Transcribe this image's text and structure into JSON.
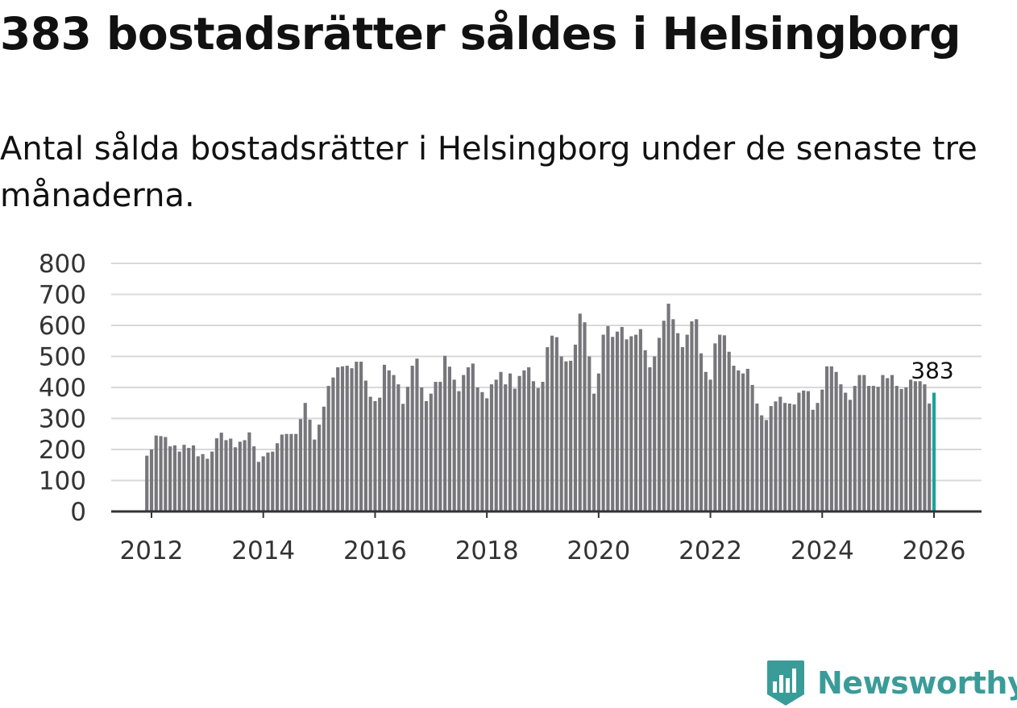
{
  "header": {
    "title": "383 bostadsrätter såldes i Helsingborg",
    "subtitle": "Antal sålda bostadsrätter i Helsingborg under de senaste tre månaderna."
  },
  "brand": {
    "name": "Newsworthy"
  },
  "colors": {
    "bar": "#77767b",
    "highlight": "#1aa39a",
    "grid": "#d9d9d9",
    "axis": "#333333",
    "brand": "#3a9c98"
  },
  "chart_data": {
    "type": "bar",
    "title": "383 bostadsrätter såldes i Helsingborg",
    "xlabel": "",
    "ylabel": "",
    "ylim": [
      0,
      800
    ],
    "yticks": [
      "0",
      "100",
      "200",
      "300",
      "400",
      "500",
      "600",
      "700",
      "800"
    ],
    "xticks": [
      "2012",
      "2014",
      "2016",
      "2018",
      "2020",
      "2022",
      "2024",
      "2026"
    ],
    "grid": true,
    "start": "2011-12",
    "end": "2026-01",
    "last_value_label": "383",
    "values": [
      180,
      200,
      245,
      243,
      240,
      210,
      213,
      193,
      215,
      205,
      213,
      178,
      185,
      170,
      193,
      236,
      254,
      230,
      235,
      207,
      225,
      230,
      255,
      210,
      160,
      178,
      190,
      193,
      220,
      248,
      250,
      250,
      250,
      298,
      350,
      296,
      232,
      280,
      338,
      405,
      432,
      465,
      468,
      470,
      462,
      483,
      483,
      422,
      370,
      356,
      367,
      473,
      455,
      440,
      410,
      347,
      402,
      470,
      493,
      400,
      356,
      380,
      418,
      418,
      502,
      467,
      425,
      388,
      440,
      465,
      477,
      400,
      385,
      365,
      410,
      425,
      450,
      410,
      445,
      396,
      437,
      455,
      465,
      420,
      398,
      418,
      530,
      567,
      562,
      500,
      484,
      486,
      538,
      638,
      610,
      500,
      380,
      445,
      570,
      598,
      563,
      580,
      595,
      555,
      565,
      570,
      588,
      520,
      465,
      500,
      560,
      615,
      670,
      620,
      575,
      530,
      570,
      613,
      620,
      510,
      450,
      425,
      542,
      570,
      568,
      515,
      470,
      455,
      445,
      460,
      408,
      348,
      310,
      295,
      340,
      355,
      370,
      350,
      348,
      345,
      383,
      390,
      388,
      328,
      350,
      393,
      468,
      468,
      450,
      410,
      383,
      360,
      405,
      440,
      440,
      405,
      405,
      402,
      440,
      430,
      440,
      405,
      395,
      400,
      425,
      420,
      420,
      410,
      348,
      383
    ]
  }
}
